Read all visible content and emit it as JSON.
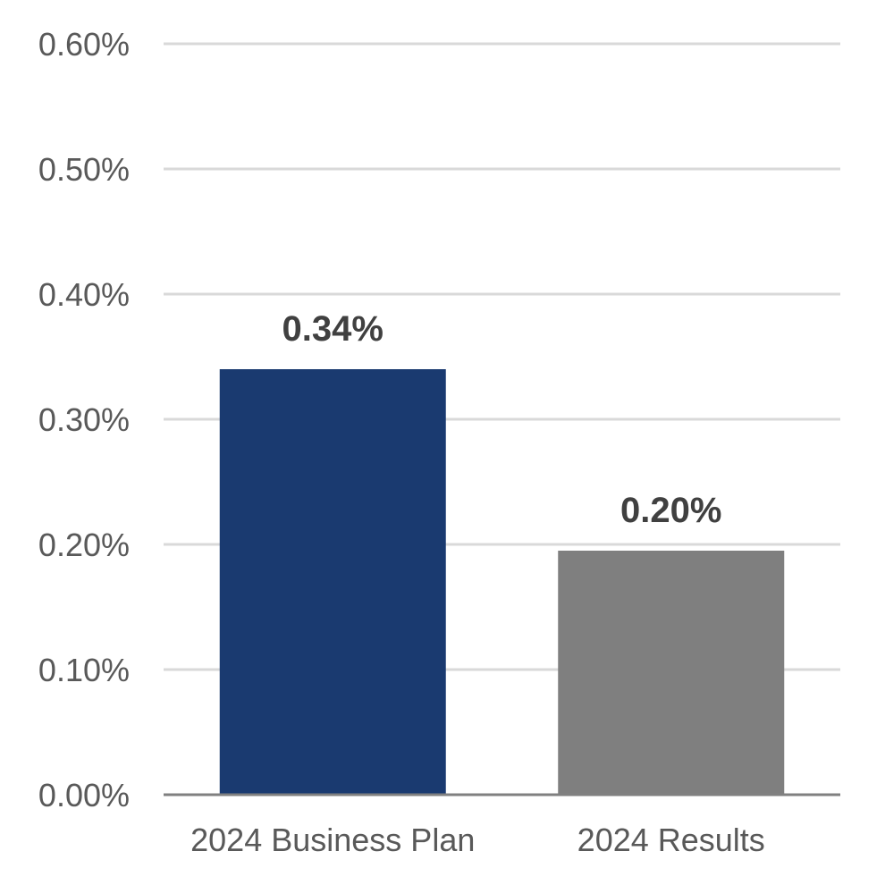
{
  "chart_data": {
    "type": "bar",
    "categories": [
      "2024 Business Plan",
      "2024 Results"
    ],
    "values": [
      0.34,
      0.195
    ],
    "data_labels": [
      "0.34%",
      "0.20%"
    ],
    "bar_colors": [
      "#1a3a70",
      "#7f7f7f"
    ],
    "title": "",
    "xlabel": "",
    "ylabel": "",
    "ylim": [
      0,
      0.6
    ],
    "yticks": [
      {
        "value": 0.0,
        "label": "0.00%"
      },
      {
        "value": 0.1,
        "label": "0.10%"
      },
      {
        "value": 0.2,
        "label": "0.20%"
      },
      {
        "value": 0.3,
        "label": "0.30%"
      },
      {
        "value": 0.4,
        "label": "0.40%"
      },
      {
        "value": 0.5,
        "label": "0.50%"
      },
      {
        "value": 0.6,
        "label": "0.60%"
      }
    ],
    "grid": true,
    "legend": "none",
    "gridline_color": "#d9d9d9",
    "axis_color": "#808080"
  }
}
